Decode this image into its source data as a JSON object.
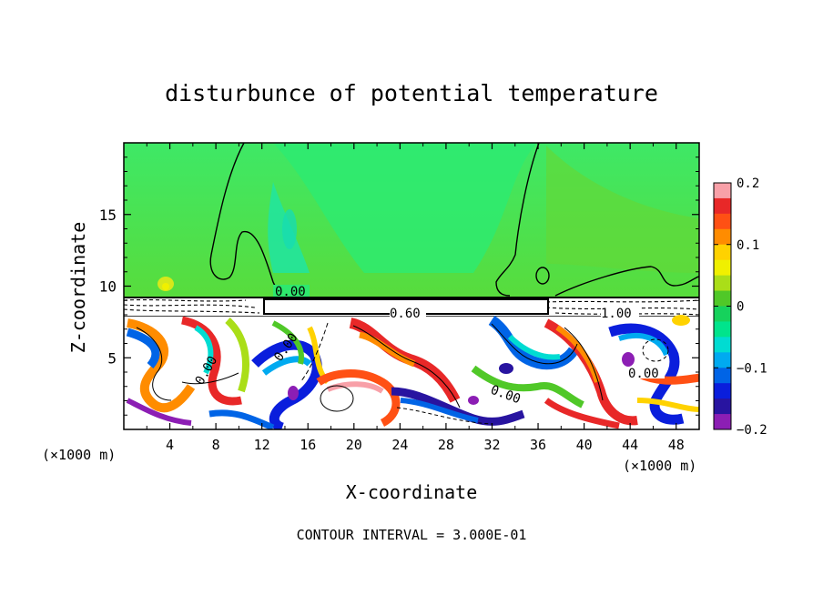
{
  "chart_data": {
    "type": "heatmap",
    "title": "disturbunce of potential temperature",
    "xlabel": "X-coordinate",
    "ylabel": "Z-coordinate",
    "x_unit": "(×1000 m)",
    "x_unit_right": "(×1000 m)",
    "xlim": [
      0,
      50
    ],
    "ylim": [
      0,
      20
    ],
    "x_ticks": [
      4,
      8,
      12,
      16,
      20,
      24,
      28,
      32,
      36,
      40,
      44,
      48
    ],
    "y_ticks": [
      5,
      10,
      15
    ],
    "colorbar": {
      "range": [
        -0.2,
        0.2
      ],
      "ticks": [
        "0.2",
        "0.1",
        "0",
        "−0.1",
        "−0.2"
      ],
      "colors": [
        "#f8a0a8",
        "#e82828",
        "#ff5014",
        "#ff8c00",
        "#ffd200",
        "#f0f000",
        "#aade18",
        "#50c828",
        "#16d25c",
        "#00e48c",
        "#00dcd2",
        "#00aaf0",
        "#0064e6",
        "#0a1edc",
        "#2814a0",
        "#8c1eb4"
      ]
    },
    "contour_labels": [
      "0.00",
      "0.60",
      "1.00",
      "0.00",
      "0.00",
      "0.00",
      "0.00"
    ],
    "contour_interval": "CONTOUR INTERVAL = 3.000E-01"
  },
  "colors": {
    "upper_green": "#2ee86e",
    "band_white": "#ffffff"
  }
}
